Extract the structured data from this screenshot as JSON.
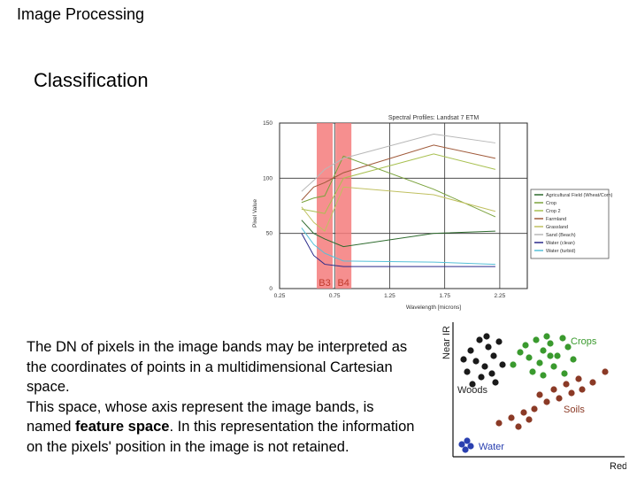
{
  "header": {
    "title": "Image Processing"
  },
  "slide": {
    "subtitle": "Classification"
  },
  "paragraph": {
    "part1": "The DN of pixels in the image bands may be interpreted as the coordinates of points in a multidimensional Cartesian space.",
    "part2": "This space, whose axis represent the image bands, is named ",
    "bold": "feature space",
    "part3": ". In this representation the information on the pixels' position in the image is not retained."
  },
  "colors": {
    "band_highlight": "#f47b7b",
    "crops": "#3a9a2e",
    "soils": "#8b3a26",
    "woods": "#1a1a1a",
    "water": "#2a40b0"
  },
  "chart_data": [
    {
      "type": "line",
      "title": "Spectral Profiles: Landsat 7 ETM",
      "xlabel": "Wavelength [microns]",
      "ylabel": "Pixel Value",
      "x": [
        0.45,
        0.56,
        0.66,
        0.83,
        1.65,
        2.21
      ],
      "xticks": [
        "0.25",
        "0.75",
        "1.25",
        "1.75",
        "2.25"
      ],
      "yticks": [
        "0",
        "50",
        "100",
        "150"
      ],
      "xlim": [
        0.25,
        2.5
      ],
      "ylim": [
        0,
        150
      ],
      "band_labels": [
        "B3",
        "B4"
      ],
      "legend_position": "right",
      "series": [
        {
          "name": "Agricultural Field (Wheat/Corn)",
          "color": "#2e6b2e",
          "values": [
            62,
            50,
            45,
            38,
            50,
            52
          ]
        },
        {
          "name": "Crop",
          "color": "#7aa23c",
          "values": [
            78,
            82,
            84,
            120,
            90,
            65
          ]
        },
        {
          "name": "Crop 2",
          "color": "#a8c050",
          "values": [
            72,
            70,
            68,
            100,
            122,
            108
          ]
        },
        {
          "name": "Farmland",
          "color": "#a05a3a",
          "values": [
            80,
            92,
            96,
            105,
            130,
            118
          ]
        },
        {
          "name": "Grassland",
          "color": "#c0c060",
          "values": [
            74,
            60,
            52,
            92,
            85,
            70
          ]
        },
        {
          "name": "Sand (Beach)",
          "color": "#b8b8b8",
          "values": [
            88,
            98,
            108,
            118,
            140,
            132
          ]
        },
        {
          "name": "Water (clean)",
          "color": "#2a2a8a",
          "values": [
            50,
            30,
            22,
            20,
            20,
            20
          ]
        },
        {
          "name": "Water (turbid)",
          "color": "#56c0d8",
          "values": [
            55,
            40,
            32,
            25,
            24,
            22
          ]
        }
      ]
    },
    {
      "type": "scatter",
      "xlabel": "Red",
      "ylabel": "Near IR",
      "classes": [
        "Crops",
        "Woods",
        "Soils",
        "Water"
      ]
    }
  ]
}
